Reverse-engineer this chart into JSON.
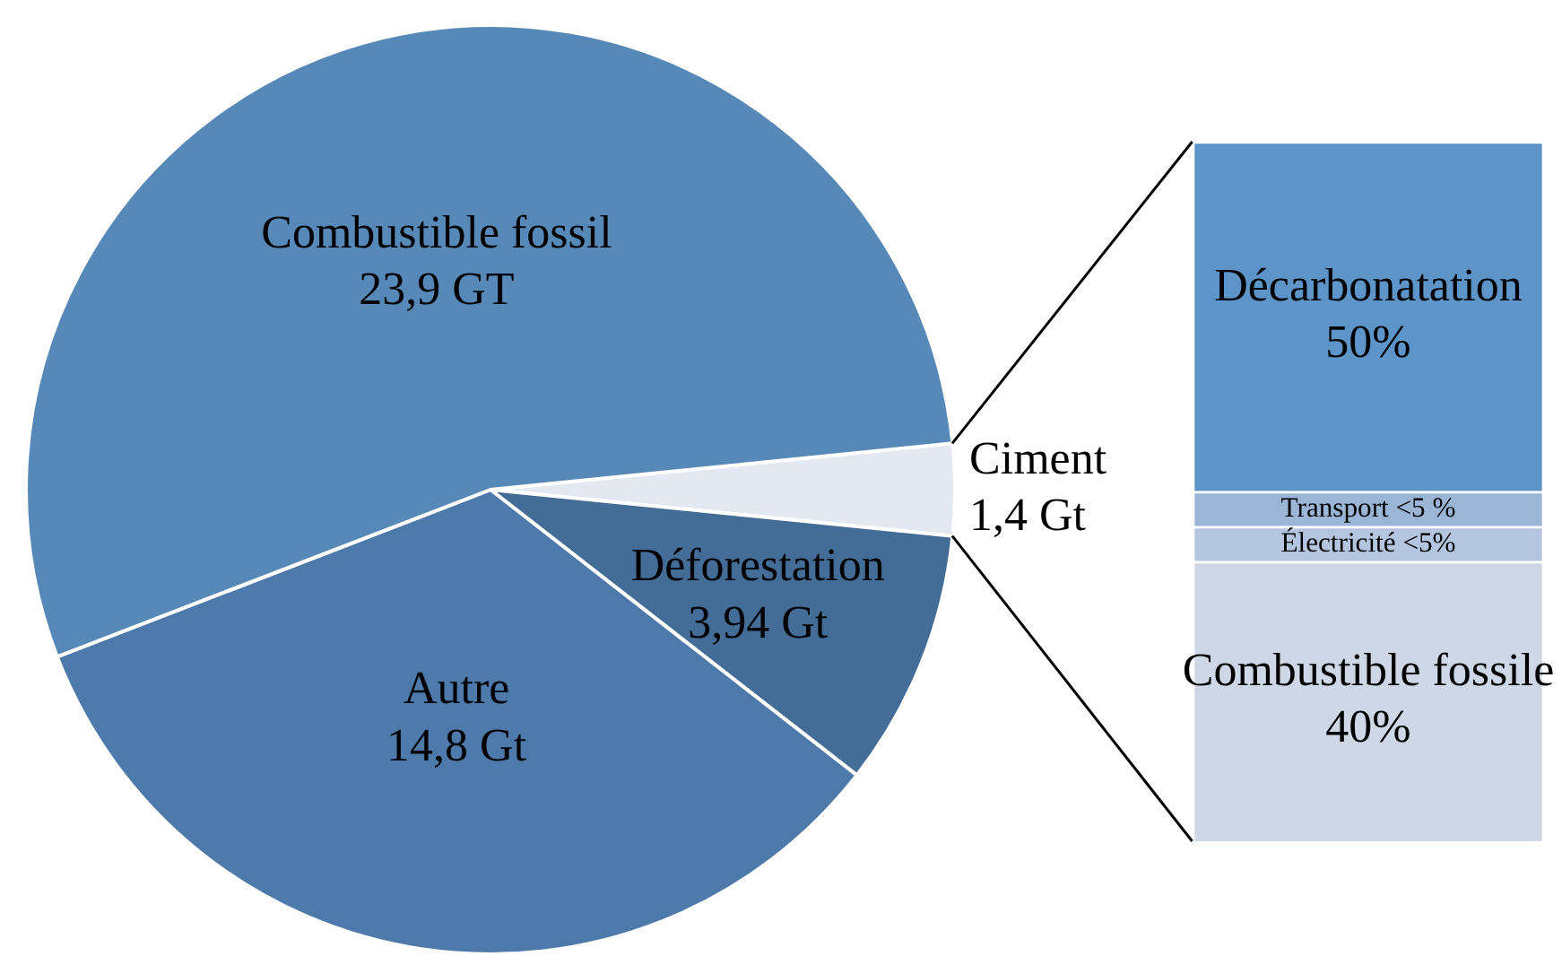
{
  "chart_data": [
    {
      "type": "pie",
      "categories": [
        "Ciment",
        "Déforestation",
        "Autre",
        "Combustible fossil"
      ],
      "values": [
        1.4,
        3.94,
        14.8,
        23.9
      ],
      "colors": [
        "#e4e8f0",
        "#436c96",
        "#4e7aab",
        "#5789b8"
      ],
      "value_labels": [
        "1,4 Gt",
        "3,94 Gt",
        "14,8 Gt",
        "23,9 GT"
      ]
    },
    {
      "type": "bar",
      "stacked": true,
      "categories": [
        null
      ],
      "ylim": [
        0,
        100
      ],
      "tick_labels": false,
      "series": [
        {
          "name": "Combustible fossile",
          "color": "#cdd7e6",
          "values": [
            40
          ],
          "value_labels": [
            "40%"
          ]
        },
        {
          "name": "Électricité",
          "color": "#b3c5df",
          "values": [
            5
          ],
          "value_labels": [
            "<5%"
          ]
        },
        {
          "name": "Transport",
          "color": "#9ab5d6",
          "values": [
            5
          ],
          "value_labels": [
            "<5 %"
          ]
        },
        {
          "name": "Décarbonatation",
          "color": "#5e95c9",
          "values": [
            50
          ],
          "value_labels": [
            "50%"
          ]
        }
      ]
    }
  ]
}
